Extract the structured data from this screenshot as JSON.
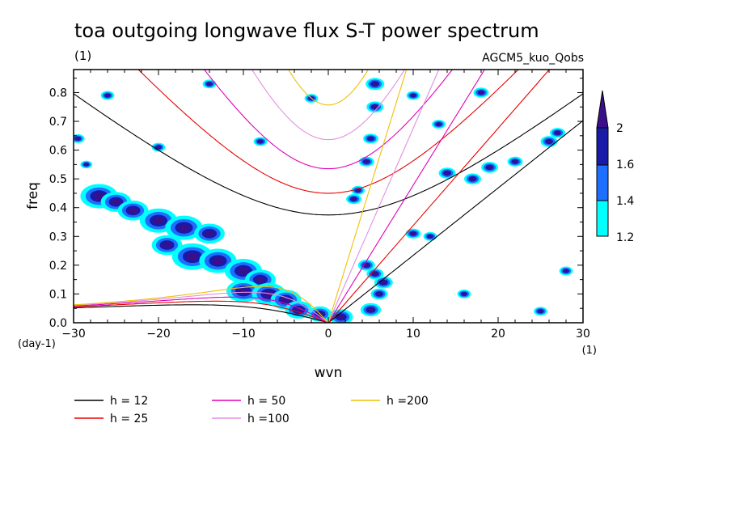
{
  "chart_data": {
    "type": "heatmap",
    "title": "toa outgoing longwave flux S-T power spectrum",
    "units_left": "(1)",
    "run_label": "AGCM5_kuo_Qobs",
    "xlabel": "wvn",
    "ylabel": "freq",
    "x_unit": "(1)",
    "y_unit": "(day-1)",
    "xlim": [
      -30,
      30
    ],
    "ylim": [
      0,
      0.88
    ],
    "xticks": [
      -30,
      -20,
      -10,
      0,
      10,
      20,
      30
    ],
    "xtick_labels": [
      "−30",
      "−20",
      "−10",
      "0",
      "10",
      "20",
      "30"
    ],
    "yticks": [
      0,
      0.1,
      0.2,
      0.3,
      0.4,
      0.5,
      0.6,
      0.7,
      0.8
    ],
    "ytick_labels": [
      "0.0",
      "0.1",
      "0.2",
      "0.3",
      "0.4",
      "0.5",
      "0.6",
      "0.7",
      "0.8"
    ],
    "contour_levels": [
      1.2,
      1.4,
      1.6,
      2
    ],
    "colorbar_labels": [
      "1.2",
      "1.4",
      "1.6",
      "2"
    ],
    "colors": [
      "#00ffff",
      "#1e6eff",
      "#1a1aa8",
      "#3c0f8a"
    ],
    "dispersion_curves": [
      {
        "name": "h = 12",
        "h": 12,
        "color": "#000000"
      },
      {
        "name": "h = 25",
        "h": 25,
        "color": "#e80000"
      },
      {
        "name": "h = 50",
        "h": 50,
        "color": "#e000b8"
      },
      {
        "name": "h =100",
        "h": 100,
        "color": "#e090e0"
      },
      {
        "name": "h =200",
        "h": 200,
        "color": "#f0c000"
      }
    ],
    "blobs": [
      {
        "x": -29.5,
        "y": 0.64,
        "r": 0.8
      },
      {
        "x": -28.5,
        "y": 0.55,
        "r": 0.7
      },
      {
        "x": -27,
        "y": 0.44,
        "r": 2.2
      },
      {
        "x": -25,
        "y": 0.42,
        "r": 1.8
      },
      {
        "x": -23,
        "y": 0.39,
        "r": 1.8
      },
      {
        "x": -20,
        "y": 0.355,
        "r": 2.2
      },
      {
        "x": -17,
        "y": 0.33,
        "r": 2.2
      },
      {
        "x": -14,
        "y": 0.31,
        "r": 1.8
      },
      {
        "x": -19,
        "y": 0.27,
        "r": 1.8
      },
      {
        "x": -16,
        "y": 0.23,
        "r": 2.4
      },
      {
        "x": -13,
        "y": 0.215,
        "r": 2.2
      },
      {
        "x": -10,
        "y": 0.18,
        "r": 2.2
      },
      {
        "x": -8,
        "y": 0.15,
        "r": 1.8
      },
      {
        "x": -10,
        "y": 0.11,
        "r": 2.0
      },
      {
        "x": -7,
        "y": 0.1,
        "r": 2.0
      },
      {
        "x": -5,
        "y": 0.08,
        "r": 1.8
      },
      {
        "x": -3.5,
        "y": 0.045,
        "r": 1.6
      },
      {
        "x": -1,
        "y": 0.03,
        "r": 1.4
      },
      {
        "x": 1.5,
        "y": 0.02,
        "r": 1.4
      },
      {
        "x": 5,
        "y": 0.045,
        "r": 1.2
      },
      {
        "x": 5.5,
        "y": 0.83,
        "r": 1.1
      },
      {
        "x": 5.5,
        "y": 0.75,
        "r": 1.0
      },
      {
        "x": 5.0,
        "y": 0.64,
        "r": 0.9
      },
      {
        "x": 4.5,
        "y": 0.56,
        "r": 0.9
      },
      {
        "x": 3.5,
        "y": 0.46,
        "r": 0.8
      },
      {
        "x": 3.0,
        "y": 0.43,
        "r": 0.9
      },
      {
        "x": 4.5,
        "y": 0.2,
        "r": 1.0
      },
      {
        "x": 5.5,
        "y": 0.17,
        "r": 1.0
      },
      {
        "x": 6.5,
        "y": 0.14,
        "r": 1.1
      },
      {
        "x": 6,
        "y": 0.1,
        "r": 1.0
      },
      {
        "x": 10,
        "y": 0.31,
        "r": 0.9
      },
      {
        "x": 12,
        "y": 0.3,
        "r": 0.8
      },
      {
        "x": 14,
        "y": 0.52,
        "r": 1.0
      },
      {
        "x": 17,
        "y": 0.5,
        "r": 1.0
      },
      {
        "x": 19,
        "y": 0.54,
        "r": 1.0
      },
      {
        "x": 22,
        "y": 0.56,
        "r": 0.9
      },
      {
        "x": 26,
        "y": 0.63,
        "r": 1.0
      },
      {
        "x": 27,
        "y": 0.66,
        "r": 0.9
      },
      {
        "x": 16,
        "y": 0.1,
        "r": 0.8
      },
      {
        "x": 25,
        "y": 0.04,
        "r": 0.8
      },
      {
        "x": -2,
        "y": 0.78,
        "r": 0.8
      },
      {
        "x": 10,
        "y": 0.79,
        "r": 0.8
      },
      {
        "x": 18,
        "y": 0.8,
        "r": 0.9
      },
      {
        "x": -26,
        "y": 0.79,
        "r": 0.8
      },
      {
        "x": -20,
        "y": 0.61,
        "r": 0.8
      },
      {
        "x": -14,
        "y": 0.83,
        "r": 0.8
      },
      {
        "x": -8,
        "y": 0.63,
        "r": 0.8
      },
      {
        "x": 13,
        "y": 0.69,
        "r": 0.8
      },
      {
        "x": 28,
        "y": 0.18,
        "r": 0.8
      }
    ]
  },
  "legend": {
    "items": [
      "h = 12",
      "h = 25",
      "h = 50",
      "h =100",
      "h =200"
    ]
  }
}
